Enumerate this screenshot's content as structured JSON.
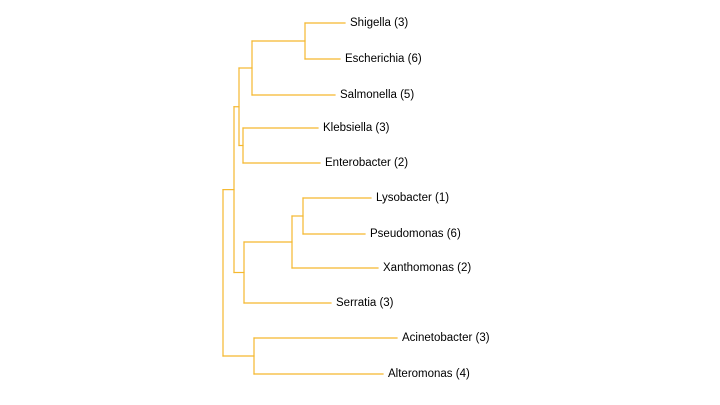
{
  "tree": {
    "branch_color": "#F5B82E",
    "leaves": [
      {
        "id": "shigella",
        "label": "Shigella (3)"
      },
      {
        "id": "escherichia",
        "label": "Escherichia (6)"
      },
      {
        "id": "salmonella",
        "label": "Salmonella (5)"
      },
      {
        "id": "klebsiella",
        "label": "Klebsiella (3)"
      },
      {
        "id": "enterobacter",
        "label": "Enterobacter (2)"
      },
      {
        "id": "lysobacter",
        "label": "Lysobacter (1)"
      },
      {
        "id": "pseudomonas",
        "label": "Pseudomonas (6)"
      },
      {
        "id": "xanthomonas",
        "label": "Xanthomonas (2)"
      },
      {
        "id": "serratia",
        "label": "Serratia (3)"
      },
      {
        "id": "acinetobacter",
        "label": "Acinetobacter (3)"
      },
      {
        "id": "alteromonas",
        "label": "Alteromonas (4)"
      }
    ],
    "clades": [
      {
        "id": "shigella-escherichia",
        "children": [
          "shigella",
          "escherichia"
        ]
      },
      {
        "id": "shigella-escherichia-salmonella",
        "children": [
          "shigella-escherichia",
          "salmonella"
        ]
      },
      {
        "id": "klebsiella-enterobacter",
        "children": [
          "klebsiella",
          "enterobacter"
        ]
      },
      {
        "id": "enterobacterales-core",
        "children": [
          "shigella-escherichia-salmonella",
          "klebsiella-enterobacter"
        ]
      },
      {
        "id": "lysobacter-pseudomonas",
        "children": [
          "lysobacter",
          "pseudomonas"
        ]
      },
      {
        "id": "lysobacter-pseudomonas-xanthomonas",
        "children": [
          "lysobacter-pseudomonas",
          "xanthomonas"
        ]
      },
      {
        "id": "serratia-group",
        "children": [
          "lysobacter-pseudomonas-xanthomonas",
          "serratia"
        ]
      },
      {
        "id": "main-group",
        "children": [
          "enterobacterales-core",
          "serratia-group"
        ]
      },
      {
        "id": "acinetobacter-alteromonas",
        "children": [
          "acinetobacter",
          "alteromonas"
        ]
      },
      {
        "id": "root",
        "children": [
          "main-group",
          "acinetobacter-alteromonas"
        ]
      }
    ]
  }
}
